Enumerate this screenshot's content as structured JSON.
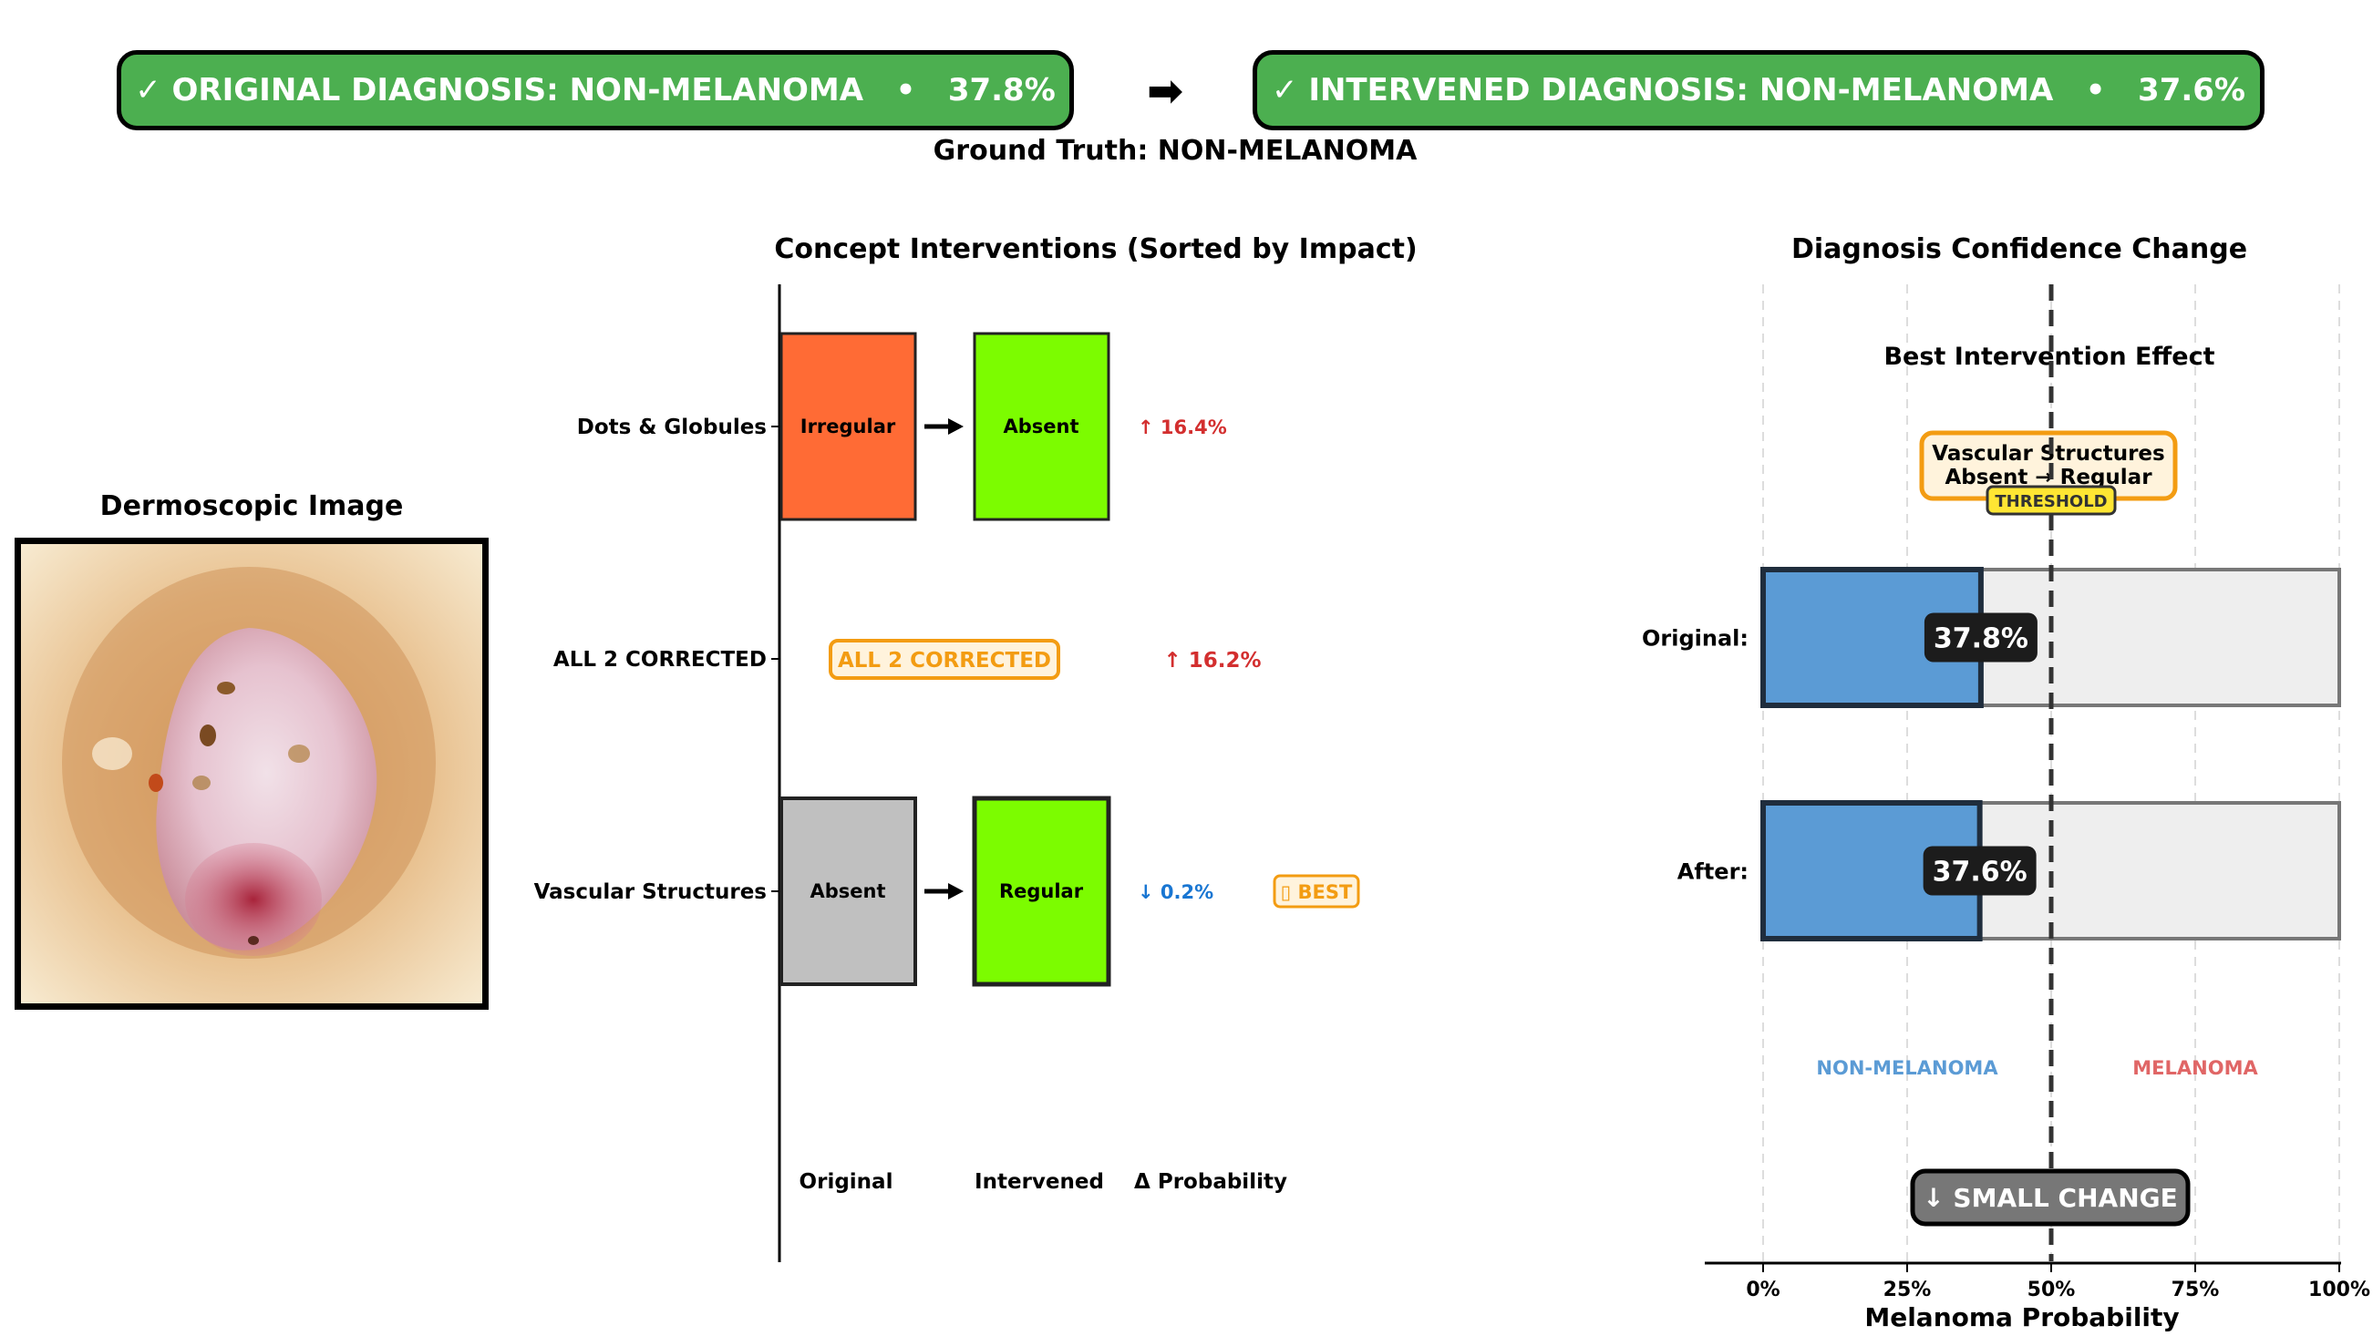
{
  "header": {
    "original_banner": "✓ ORIGINAL DIAGNOSIS: NON-MELANOMA   •   37.8%",
    "intervened_banner": "✓ INTERVENED DIAGNOSIS: NON-MELANOMA   •   37.6%",
    "arrow": "➡",
    "ground_truth": "Ground Truth: NON-MELANOMA",
    "banner_color": "#4caf50"
  },
  "image_panel": {
    "title": "Dermoscopic Image"
  },
  "chart_data": [
    {
      "type": "table",
      "title": "Concept Interventions (Sorted by Impact)",
      "column_headers": [
        "Original",
        "Intervened",
        "Δ Probability"
      ],
      "rows": [
        {
          "label": "Dots & Globules",
          "original": "Irregular",
          "original_color": "#ff6b35",
          "intervened": "Absent",
          "intervened_color": "#7cfc00",
          "delta": "↑ 16.4%",
          "delta_color": "#d32f2f"
        },
        {
          "label": "ALL 2 CORRECTED",
          "badge": "ALL 2 CORRECTED",
          "delta": "↑ 16.2%",
          "delta_color": "#d32f2f"
        },
        {
          "label": "Vascular Structures",
          "original": "Absent",
          "original_color": "#c0c0c0",
          "intervened": "Regular",
          "intervened_color": "#7cfc00",
          "delta": "↓ 0.2%",
          "delta_color": "#1976d2",
          "tag": "▯ BEST"
        }
      ]
    },
    {
      "type": "bar",
      "title": "Diagnosis Confidence Change",
      "subtitle": "Best Intervention Effect",
      "categories": [
        "Original:",
        "After:"
      ],
      "values": [
        37.8,
        37.6
      ],
      "value_labels": [
        "37.8%",
        "37.6%"
      ],
      "xlabel": "Melanoma Probability",
      "xlim": [
        0,
        100
      ],
      "ticks": [
        "0%",
        "25%",
        "50%",
        "75%",
        "100%"
      ],
      "threshold": 50,
      "threshold_label": "THRESHOLD",
      "annotation": [
        "Vascular Structures",
        "Absent → Regular"
      ],
      "region_labels": [
        "NON-MELANOMA",
        "MELANOMA"
      ],
      "change_label": "↓ SMALL CHANGE",
      "bar_color": "#5b9bd5",
      "track_color": "#eeeeee",
      "grid": true
    }
  ]
}
